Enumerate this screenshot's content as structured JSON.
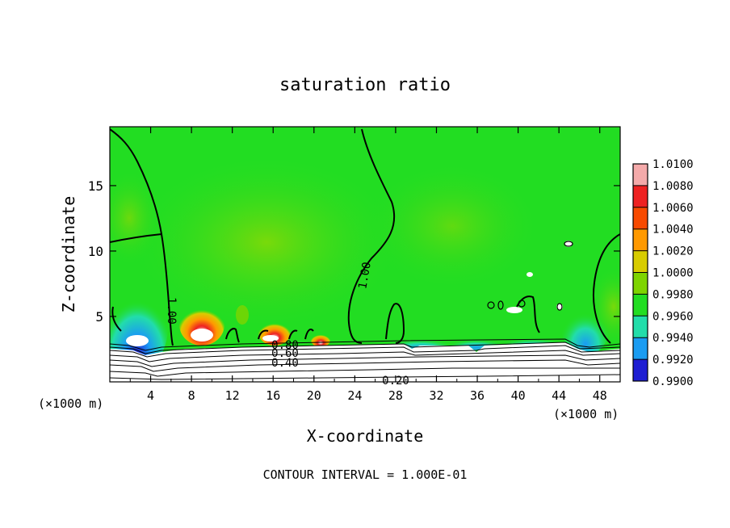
{
  "chart_data": {
    "type": "heatmap",
    "title": "saturation ratio",
    "xlabel": "X-coordinate",
    "ylabel": "Z-coordinate",
    "x_unit_label": "(×1000 m)",
    "x_unit_label_right": "(×1000 m)",
    "xlim": [
      0,
      50
    ],
    "ylim": [
      0,
      19.5
    ],
    "x_ticks": [
      "4",
      "8",
      "12",
      "16",
      "20",
      "24",
      "28",
      "32",
      "36",
      "40",
      "44",
      "48"
    ],
    "x_tick_values": [
      4,
      8,
      12,
      16,
      20,
      24,
      28,
      32,
      36,
      40,
      44,
      48
    ],
    "y_ticks": [
      "5",
      "10",
      "15"
    ],
    "y_tick_values": [
      5,
      10,
      15
    ],
    "footer": "CONTOUR INTERVAL = 1.000E-01",
    "colorbar": {
      "labels": [
        "1.0100",
        "1.0080",
        "1.0060",
        "1.0040",
        "1.0020",
        "1.0000",
        "0.9980",
        "0.9960",
        "0.9940",
        "0.9920",
        "0.9900"
      ],
      "colors": [
        "#f4aaaa",
        "#ee2222",
        "#f84a00",
        "#ff9900",
        "#d8cc00",
        "#7ed400",
        "#22dd22",
        "#22ddaa",
        "#1a9cf2",
        "#1e1ed2",
        "#4a00a0"
      ]
    },
    "contour_labels": [
      "1.00",
      "1.00",
      "0.80",
      "0.60",
      "0.40",
      "0.20"
    ],
    "background_color": "#22dd22"
  }
}
